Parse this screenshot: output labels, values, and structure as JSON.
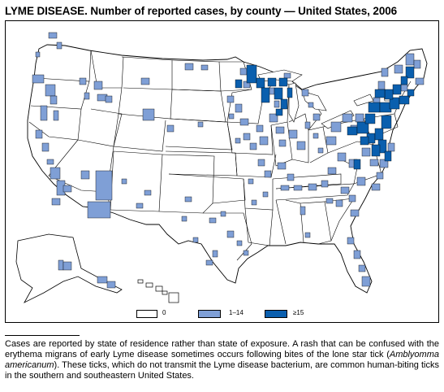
{
  "title": "LYME DISEASE. Number of reported cases, by county — United States, 2006",
  "legend": {
    "items": [
      {
        "label": "0",
        "color": "#ffffff"
      },
      {
        "label": "1–14",
        "color": "#7f9fd6"
      },
      {
        "label": "≥15",
        "color": "#0a5fae"
      }
    ]
  },
  "colors": {
    "none": "#ffffff",
    "low": "#7f9fd6",
    "high": "#0a5fae",
    "border": "#000000"
  },
  "footnote": {
    "before": "Cases are reported by state of residence rather than state of exposure. A rash that can be confused with the erythema migrans of early Lyme disease sometimes occurs following bites of the lone star tick (",
    "italic": "Amblyomma americanum",
    "after": "). These ticks, which do not transmit the Lyme disease bacterium, are common human-biting ticks in the southern and southeastern United States."
  }
}
